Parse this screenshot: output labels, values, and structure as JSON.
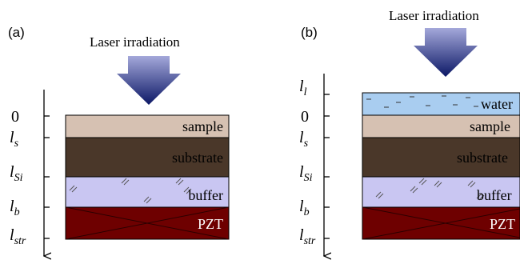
{
  "colors": {
    "sample": "#d6c1b2",
    "substrate": "#4a3729",
    "buffer": "#c9c6f2",
    "pzt": "#6e0000",
    "water": "#a9cdf0",
    "arrow_light": "#a4a8da",
    "arrow_dark": "#0c1866"
  },
  "panel_a": {
    "label": "(a)",
    "title": "Laser irradiation",
    "axis": {
      "zero": "0",
      "ls_sub": "s",
      "lsi_sub": "Si",
      "lb_sub": "b",
      "lstr_sub": "str",
      "base": "l"
    },
    "layers": {
      "sample": "sample",
      "substrate": "substrate",
      "buffer": "buffer",
      "pzt": "PZT"
    }
  },
  "panel_b": {
    "label": "(b)",
    "title": "Laser irradiation",
    "axis": {
      "ll_sub": "l",
      "zero": "0",
      "ls_sub": "s",
      "lsi_sub": "Si",
      "lb_sub": "b",
      "lstr_sub": "str",
      "base": "l"
    },
    "layers": {
      "water": "water",
      "sample": "sample",
      "substrate": "substrate",
      "buffer": "buffer",
      "pzt": "PZT"
    }
  }
}
